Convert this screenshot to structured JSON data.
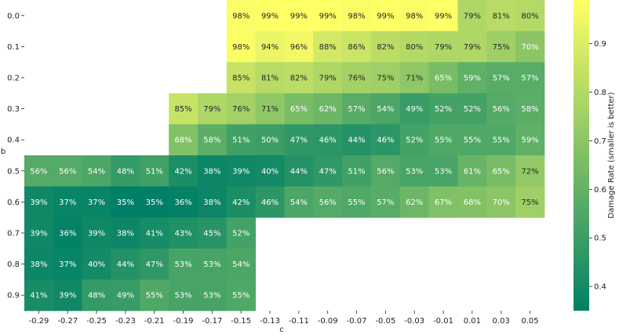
{
  "chart_data": {
    "type": "heatmap",
    "xlabel": "c",
    "ylabel": "b",
    "x_categories": [
      "-0.29",
      "-0.27",
      "-0.25",
      "-0.23",
      "-0.21",
      "-0.19",
      "-0.17",
      "-0.15",
      "-0.13",
      "-0.11",
      "-0.09",
      "-0.07",
      "-0.05",
      "-0.03",
      "-0.01",
      "0.01",
      "0.03",
      "0.05"
    ],
    "y_categories": [
      "0.0",
      "0.1",
      "0.2",
      "0.3",
      "0.4",
      "0.5",
      "0.6",
      "0.7",
      "0.8",
      "0.9"
    ],
    "values": [
      [
        null,
        null,
        null,
        null,
        null,
        null,
        null,
        0.98,
        0.99,
        0.99,
        0.99,
        0.98,
        0.99,
        0.98,
        0.99,
        0.79,
        0.81,
        0.8
      ],
      [
        null,
        null,
        null,
        null,
        null,
        null,
        null,
        0.98,
        0.94,
        0.96,
        0.88,
        0.86,
        0.82,
        0.8,
        0.79,
        0.79,
        0.75,
        0.7
      ],
      [
        null,
        null,
        null,
        null,
        null,
        null,
        null,
        0.85,
        0.81,
        0.82,
        0.79,
        0.76,
        0.75,
        0.71,
        0.65,
        0.59,
        0.57,
        0.57
      ],
      [
        null,
        null,
        null,
        null,
        null,
        0.85,
        0.79,
        0.76,
        0.71,
        0.65,
        0.62,
        0.57,
        0.54,
        0.49,
        0.52,
        0.52,
        0.56,
        0.58
      ],
      [
        null,
        null,
        null,
        null,
        null,
        0.68,
        0.58,
        0.51,
        0.5,
        0.47,
        0.46,
        0.44,
        0.46,
        0.52,
        0.55,
        0.55,
        0.55,
        0.59
      ],
      [
        0.56,
        0.56,
        0.54,
        0.48,
        0.51,
        0.42,
        0.38,
        0.39,
        0.4,
        0.44,
        0.47,
        0.51,
        0.56,
        0.53,
        0.53,
        0.61,
        0.65,
        0.72
      ],
      [
        0.39,
        0.37,
        0.37,
        0.35,
        0.35,
        0.36,
        0.38,
        0.42,
        0.46,
        0.54,
        0.56,
        0.55,
        0.57,
        0.62,
        0.67,
        0.68,
        0.7,
        0.75
      ],
      [
        0.39,
        0.36,
        0.39,
        0.38,
        0.41,
        0.43,
        0.45,
        0.52,
        null,
        null,
        null,
        null,
        null,
        null,
        null,
        null,
        null,
        null
      ],
      [
        0.38,
        0.37,
        0.4,
        0.44,
        0.47,
        0.53,
        0.53,
        0.54,
        null,
        null,
        null,
        null,
        null,
        null,
        null,
        null,
        null,
        null
      ],
      [
        0.41,
        0.39,
        0.48,
        0.49,
        0.55,
        0.53,
        0.53,
        0.55,
        null,
        null,
        null,
        null,
        null,
        null,
        null,
        null,
        null,
        null
      ]
    ],
    "value_format": "percent",
    "color_scale": {
      "name": "summer_r",
      "vmin": 0.35,
      "vmax": 0.99,
      "low_color": "#008066",
      "high_color": "#ffff66"
    },
    "colorbar": {
      "label": "Damage Rate (smaller is better)",
      "ticks": [
        "0.4",
        "0.5",
        "0.6",
        "0.7",
        "0.8",
        "0.9"
      ]
    },
    "grid": false,
    "legend": "colorbar-right"
  }
}
